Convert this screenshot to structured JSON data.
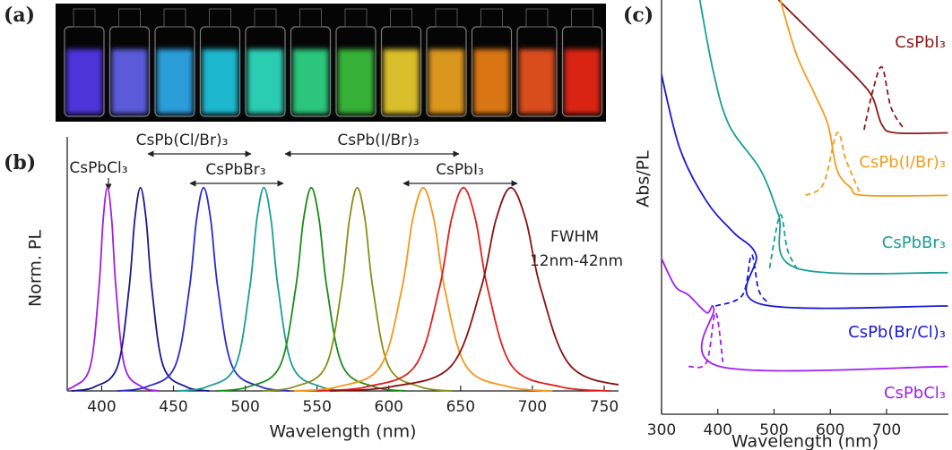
{
  "panel_labels": [
    "(a)",
    "(b)",
    "(c)"
  ],
  "chart_data": [
    {
      "type": "line",
      "xlabel": "Wavelength (nm)",
      "ylabel": "Norm. PL",
      "xlim": [
        376,
        760
      ],
      "xticks": [
        400,
        450,
        500,
        550,
        600,
        650,
        700,
        750
      ],
      "ylim": [
        0,
        1.25
      ],
      "annotations": [
        "CsPbCl₃",
        "CsPb(Cl/Br)₃",
        "CsPbBr₃",
        "CsPb(I/Br)₃",
        "CsPbI₃",
        "FWHM",
        "12nm-42nm"
      ],
      "series": [
        {
          "color": "#a020e0",
          "x": [
            368,
            380,
            392,
            398,
            401,
            404,
            407,
            410,
            416,
            428,
            440
          ],
          "values": [
            0,
            0.02,
            0.12,
            0.5,
            0.84,
            1,
            0.84,
            0.5,
            0.12,
            0.02,
            0
          ]
        },
        {
          "color": "#1a1a8c",
          "x": [
            379,
            395,
            411,
            419,
            423,
            427,
            431,
            435,
            443,
            459,
            475
          ],
          "values": [
            0,
            0.02,
            0.12,
            0.5,
            0.84,
            1,
            0.84,
            0.5,
            0.12,
            0.02,
            0
          ]
        },
        {
          "color": "#2a2ad0",
          "x": [
            411,
            431,
            451,
            461,
            466,
            471,
            476,
            481,
            491,
            511,
            531
          ],
          "values": [
            0,
            0.02,
            0.12,
            0.5,
            0.84,
            1,
            0.84,
            0.5,
            0.12,
            0.02,
            0
          ]
        },
        {
          "color": "#1a9e96",
          "x": [
            453,
            473,
            493,
            503,
            508,
            513,
            518,
            523,
            533,
            553,
            573
          ],
          "values": [
            0,
            0.02,
            0.12,
            0.5,
            0.84,
            1,
            0.84,
            0.5,
            0.12,
            0.02,
            0
          ]
        },
        {
          "color": "#1a8c1a",
          "x": [
            480,
            502,
            524,
            535,
            540.5,
            546,
            551.5,
            557,
            568,
            590,
            612
          ],
          "values": [
            0,
            0.02,
            0.12,
            0.5,
            0.84,
            1,
            0.84,
            0.5,
            0.12,
            0.02,
            0
          ]
        },
        {
          "color": "#8c8c1a",
          "x": [
            512,
            534,
            556,
            567,
            572.5,
            578,
            583.5,
            589,
            600,
            622,
            644
          ],
          "values": [
            0,
            0.02,
            0.12,
            0.5,
            0.84,
            1,
            0.84,
            0.5,
            0.12,
            0.02,
            0
          ]
        },
        {
          "color": "#f5961e",
          "x": [
            534,
            564,
            594,
            609,
            616.5,
            624,
            631.5,
            639,
            654,
            684,
            714
          ],
          "values": [
            0,
            0.02,
            0.12,
            0.5,
            0.84,
            1,
            0.84,
            0.5,
            0.12,
            0.02,
            0
          ]
        },
        {
          "color": "#e0201e",
          "x": [
            550,
            584,
            618,
            635,
            643.5,
            652,
            660.5,
            669,
            686,
            720,
            754
          ],
          "values": [
            0,
            0.02,
            0.12,
            0.5,
            0.84,
            1,
            0.84,
            0.5,
            0.12,
            0.02,
            0
          ]
        },
        {
          "color": "#8b1010",
          "x": [
            559,
            601,
            643,
            664,
            674.5,
            685,
            695.5,
            706,
            727,
            769,
            811
          ],
          "values": [
            0,
            0.02,
            0.12,
            0.5,
            0.84,
            1,
            0.84,
            0.5,
            0.12,
            0.02,
            0
          ]
        }
      ]
    },
    {
      "type": "line",
      "xlabel": "Wavelength (nm)",
      "ylabel": "Abs/PL",
      "xlim": [
        300,
        810
      ],
      "xticks": [
        300,
        400,
        500,
        600,
        700
      ],
      "ylim": [
        -6,
        100
      ],
      "series": [
        {
          "name": "CsPbI₃",
          "color": "#8b1a1a",
          "x": [
            508,
            588,
            652,
            676,
            692,
            716,
            809
          ],
          "values": [
            100,
            88.6,
            79.4,
            74.8,
            68,
            66,
            66
          ]
        },
        {
          "color": "#8b1a1a",
          "dashed": true,
          "x": [
            660,
            676,
            692,
            708,
            732
          ],
          "values": [
            66.8,
            77,
            82.8,
            72.5,
            66.8
          ]
        },
        {
          "name": "CsPb(I/Br)₃",
          "color": "#f39c1f",
          "x": [
            511,
            540,
            572,
            596,
            612,
            636,
            660,
            809
          ],
          "values": [
            100,
            86,
            76,
            68,
            56.5,
            52,
            50,
            50
          ]
        },
        {
          "color": "#f39c1f",
          "dashed": true,
          "x": [
            556,
            588,
            612,
            628,
            652
          ],
          "values": [
            50,
            53,
            66,
            59,
            50.8
          ]
        },
        {
          "name": "CsPbBr₃",
          "color": "#1a9e96",
          "x": [
            368,
            392,
            420,
            476,
            508,
            540,
            809
          ],
          "values": [
            100,
            81.7,
            68,
            56.5,
            45,
            31.4,
            30.2
          ]
        },
        {
          "color": "#1a9e96",
          "dashed": true,
          "x": [
            492,
            511,
            524,
            543
          ],
          "values": [
            31.4,
            45,
            36,
            30.7
          ]
        },
        {
          "name": "CsPb(Br/Cl)₃",
          "color": "#1a1ad6",
          "x": [
            297,
            332,
            380,
            428,
            468,
            476,
            809
          ],
          "values": [
            82.8,
            62.2,
            48.5,
            40.5,
            34.8,
            22.2,
            21.7
          ]
        },
        {
          "color": "#1a1ad6",
          "dashed": true,
          "x": [
            396,
            444,
            460,
            473,
            492
          ],
          "values": [
            21.7,
            24.5,
            34.8,
            25.6,
            22.2
          ]
        },
        {
          "name": "CsPbCl₃",
          "color": "#a020f0",
          "x": [
            297,
            324,
            348,
            380,
            393,
            404,
            809
          ],
          "values": [
            34.8,
            26.8,
            24.5,
            20,
            21,
            6.2,
            6.2
          ]
        },
        {
          "color": "#a020f0",
          "dashed": true,
          "x": [
            348,
            380,
            396,
            409
          ],
          "values": [
            6.2,
            7.3,
            20,
            7.3
          ]
        }
      ]
    }
  ]
}
